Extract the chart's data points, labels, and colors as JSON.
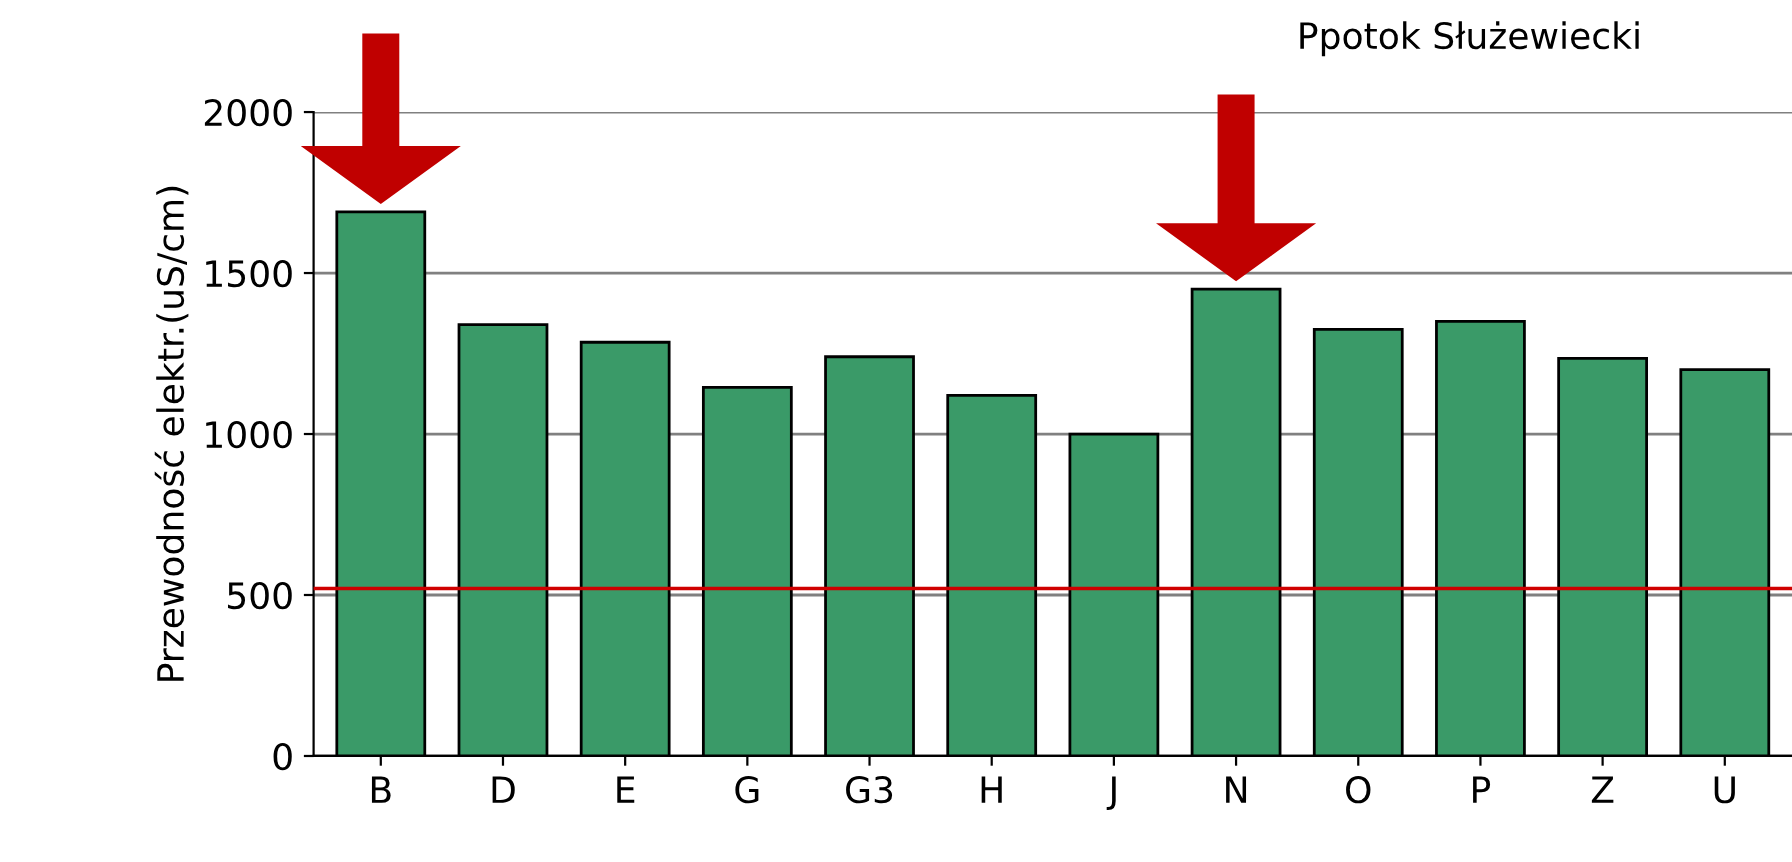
{
  "chart_data": {
    "type": "bar",
    "title": "Ppotok Służewiecki",
    "ylabel": "Przewodność elektr.(uS/cm)",
    "categories": [
      "B",
      "D",
      "E",
      "G",
      "G3",
      "H",
      "J",
      "N",
      "O",
      "P",
      "Z",
      "U"
    ],
    "values": [
      1690,
      1340,
      1285,
      1145,
      1240,
      1120,
      1000,
      1450,
      1325,
      1350,
      1235,
      1200
    ],
    "color": "#3a9a68",
    "ylim": [
      0,
      2000
    ],
    "yticks": [
      0,
      500,
      1000,
      1500,
      2000
    ],
    "grid": "y",
    "ref_lines": [
      {
        "axis": "y",
        "value": 520,
        "color": "#d00000"
      }
    ]
  }
}
